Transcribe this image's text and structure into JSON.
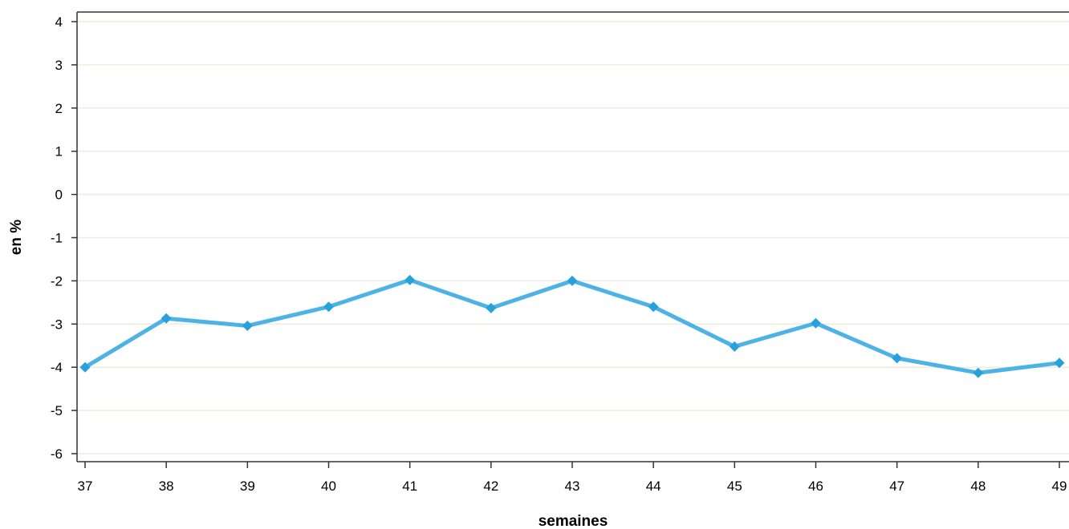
{
  "chart_data": {
    "type": "line",
    "title": "",
    "xlabel": "semaines",
    "ylabel": "en %",
    "x": [
      37,
      38,
      39,
      40,
      41,
      42,
      43,
      44,
      45,
      46,
      47,
      48,
      49
    ],
    "xlim": [
      37,
      49
    ],
    "ylim": [
      -6,
      4
    ],
    "yticks": [
      4,
      3,
      2,
      1,
      0,
      -1,
      -2,
      -3,
      -4,
      -5,
      -6
    ],
    "grid": true,
    "legend": "none",
    "series": [
      {
        "name": "",
        "values": [
          -4.0,
          -2.87,
          -3.04,
          -2.6,
          -1.98,
          -2.63,
          -2.0,
          -2.6,
          -3.52,
          -2.98,
          -3.79,
          -4.13,
          -3.9
        ],
        "marker": "diamond",
        "color": "#4db3e6",
        "marker_color": "#27a1db"
      }
    ],
    "colors": {
      "gridline": "#f0ecdc",
      "axis": "#333333"
    }
  }
}
